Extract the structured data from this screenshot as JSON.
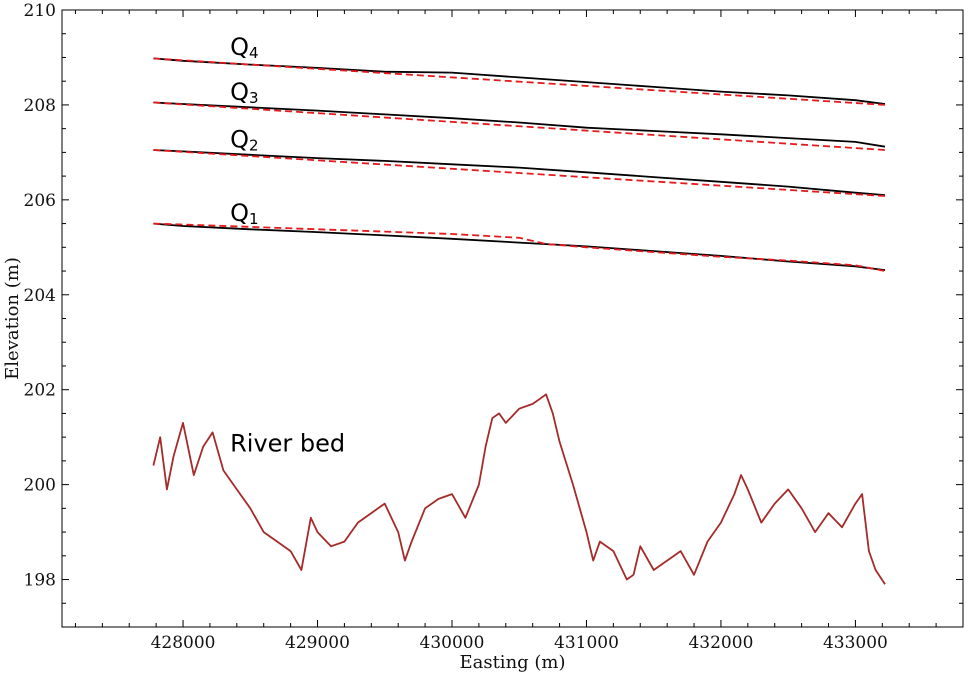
{
  "chart_data": {
    "type": "line",
    "title": "",
    "xlabel": "Easting (m)",
    "ylabel": "Elevation (m)",
    "xlim": [
      427100,
      433800
    ],
    "ylim": [
      197,
      210
    ],
    "grid": false,
    "x_ticks": [
      428000,
      429000,
      430000,
      431000,
      432000,
      433000
    ],
    "x_tick_labels": [
      "428000",
      "429000",
      "430000",
      "431000",
      "432000",
      "433000"
    ],
    "y_ticks": [
      198,
      200,
      202,
      204,
      206,
      208,
      210
    ],
    "y_tick_labels": [
      "198",
      "200",
      "202",
      "204",
      "206",
      "208",
      "210"
    ],
    "colors": {
      "observed": "#000000",
      "fitted": "#e41a1c",
      "riverbed": "#a52a2a"
    },
    "annotations": [
      {
        "main": "Q",
        "sub": "4",
        "x": 428350,
        "y": 209.05
      },
      {
        "main": "Q",
        "sub": "3",
        "x": 428350,
        "y": 208.1
      },
      {
        "main": "Q",
        "sub": "2",
        "x": 428350,
        "y": 207.1
      },
      {
        "main": "Q",
        "sub": "1",
        "x": 428350,
        "y": 205.55
      },
      {
        "main": "River bed",
        "sub": "",
        "x": 428350,
        "y": 200.7
      }
    ],
    "series": [
      {
        "line_style": "solid",
        "color_key": "observed",
        "x": [
          427780,
          428000,
          428500,
          429000,
          429500,
          430000,
          430500,
          431000,
          431500,
          432000,
          432500,
          433000,
          433220
        ],
        "y": [
          208.98,
          208.93,
          208.85,
          208.78,
          208.7,
          208.68,
          208.58,
          208.48,
          208.38,
          208.28,
          208.2,
          208.1,
          208.02
        ]
      },
      {
        "line_style": "dashed",
        "color_key": "fitted",
        "x": [
          427780,
          433220
        ],
        "y": [
          208.98,
          208.0
        ]
      },
      {
        "line_style": "solid",
        "color_key": "observed",
        "x": [
          427780,
          428000,
          428500,
          429000,
          429500,
          430000,
          430500,
          431000,
          431500,
          432000,
          432500,
          433000,
          433220
        ],
        "y": [
          208.05,
          208.02,
          207.95,
          207.88,
          207.8,
          207.72,
          207.63,
          207.52,
          207.45,
          207.38,
          207.3,
          207.22,
          207.12
        ]
      },
      {
        "line_style": "dashed",
        "color_key": "fitted",
        "x": [
          427780,
          433220
        ],
        "y": [
          208.05,
          207.05
        ]
      },
      {
        "line_style": "solid",
        "color_key": "observed",
        "x": [
          427780,
          428000,
          428500,
          429000,
          429500,
          430000,
          430500,
          431000,
          431500,
          432000,
          432500,
          433000,
          433220
        ],
        "y": [
          207.05,
          207.02,
          206.95,
          206.88,
          206.82,
          206.75,
          206.68,
          206.58,
          206.48,
          206.38,
          206.28,
          206.15,
          206.1
        ]
      },
      {
        "line_style": "dashed",
        "color_key": "fitted",
        "x": [
          427780,
          433220
        ],
        "y": [
          207.05,
          206.08
        ]
      },
      {
        "line_style": "solid",
        "color_key": "observed",
        "x": [
          427780,
          428000,
          428500,
          429000,
          429500,
          430000,
          430500,
          431000,
          431500,
          432000,
          432500,
          433000,
          433220
        ],
        "y": [
          205.5,
          205.45,
          205.38,
          205.32,
          205.25,
          205.18,
          205.1,
          205.02,
          204.92,
          204.82,
          204.7,
          204.6,
          204.52
        ]
      },
      {
        "line_style": "dashed",
        "color_key": "fitted",
        "x": [
          427780,
          428000,
          428500,
          429000,
          429500,
          430000,
          430500,
          430700,
          431000,
          431500,
          432000,
          432500,
          433000,
          433220
        ],
        "y": [
          205.5,
          205.48,
          205.43,
          205.38,
          205.33,
          205.28,
          205.2,
          205.07,
          205.0,
          204.9,
          204.8,
          204.72,
          204.62,
          204.5
        ]
      },
      {
        "line_style": "solid",
        "color_key": "riverbed",
        "x": [
          427780,
          427830,
          427880,
          427930,
          428000,
          428080,
          428150,
          428220,
          428300,
          428400,
          428500,
          428600,
          428700,
          428800,
          428880,
          428950,
          429000,
          429100,
          429200,
          429300,
          429400,
          429500,
          429600,
          429650,
          429700,
          429800,
          429900,
          430000,
          430100,
          430200,
          430250,
          430300,
          430350,
          430400,
          430500,
          430600,
          430650,
          430700,
          430750,
          430800,
          430900,
          431000,
          431050,
          431100,
          431200,
          431300,
          431350,
          431400,
          431500,
          431600,
          431700,
          431800,
          431900,
          432000,
          432100,
          432150,
          432200,
          432300,
          432400,
          432500,
          432600,
          432700,
          432800,
          432900,
          433000,
          433050,
          433100,
          433150,
          433220
        ],
        "y": [
          200.4,
          201.0,
          199.9,
          200.6,
          201.3,
          200.2,
          200.8,
          201.1,
          200.3,
          199.9,
          199.5,
          199.0,
          198.8,
          198.6,
          198.2,
          199.3,
          199.0,
          198.7,
          198.8,
          199.2,
          199.4,
          199.6,
          199.0,
          198.4,
          198.8,
          199.5,
          199.7,
          199.8,
          199.3,
          200.0,
          200.8,
          201.4,
          201.5,
          201.3,
          201.6,
          201.7,
          201.8,
          201.9,
          201.5,
          200.9,
          200.0,
          199.0,
          198.4,
          198.8,
          198.6,
          198.0,
          198.1,
          198.7,
          198.2,
          198.4,
          198.6,
          198.1,
          198.8,
          199.2,
          199.8,
          200.2,
          199.9,
          199.2,
          199.6,
          199.9,
          199.5,
          199.0,
          199.4,
          199.1,
          199.6,
          199.8,
          198.6,
          198.2,
          197.9
        ]
      }
    ]
  }
}
